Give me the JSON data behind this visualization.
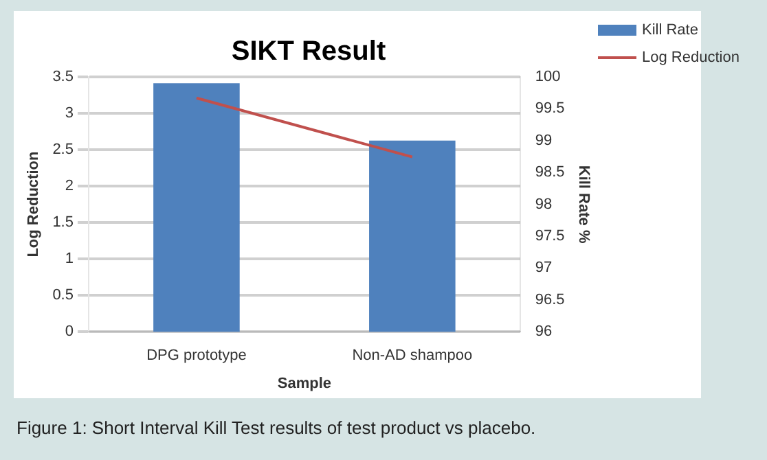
{
  "chart_data": {
    "type": "bar",
    "title": "SIKT Result",
    "xlabel": "Sample",
    "ylabel": "Log Reduction",
    "y2label": "Kill Rate %",
    "categories": [
      "DPG prototype",
      "Non-AD shampoo"
    ],
    "series": [
      {
        "name": "Kill Rate",
        "axis": "y2",
        "color": "#4f81bd",
        "values": [
          99.9,
          99.0
        ]
      },
      {
        "name": "Log Reduction",
        "type": "line",
        "axis": "y",
        "color": "#c0504d",
        "values": [
          3.21,
          2.4
        ]
      }
    ],
    "ylim": [
      0,
      3.5
    ],
    "yticks": [
      0,
      0.5,
      1,
      1.5,
      2,
      2.5,
      3,
      3.5
    ],
    "y2lim": [
      96,
      100
    ],
    "y2ticks": [
      96,
      96.5,
      97,
      97.5,
      98,
      98.5,
      99,
      99.5,
      100
    ],
    "grid": "y",
    "legend": "top right",
    "marker": "none",
    "annotations": [
      "Figure 1: Short Interval Kill Test results of test product vs placebo."
    ]
  }
}
